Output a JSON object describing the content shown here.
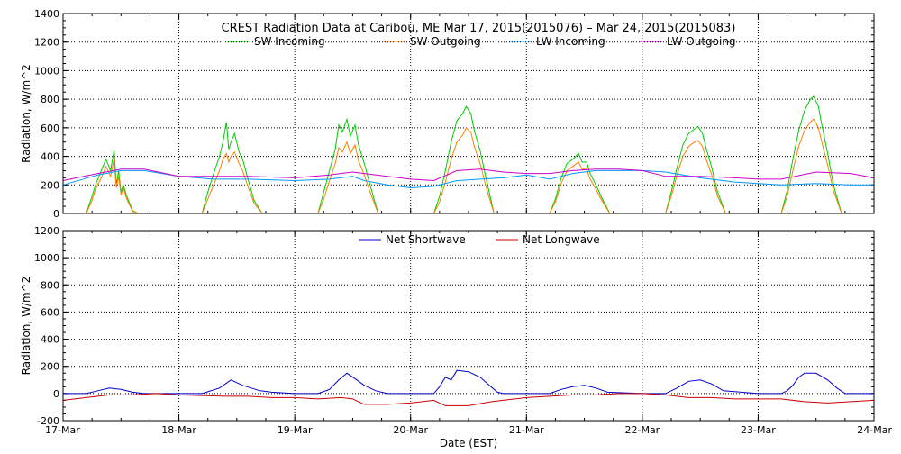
{
  "title": "CREST Radiation Data at Caribou, ME   Mar 17, 2015(2015076) – Mar 24, 2015(2015083)",
  "xlabel": "Date (EST)",
  "x_ticks": [
    "17-Mar",
    "18-Mar",
    "19-Mar",
    "20-Mar",
    "21-Mar",
    "22-Mar",
    "23-Mar",
    "24-Mar"
  ],
  "chart_data": [
    {
      "type": "line",
      "ylabel": "Radiation, W/m^2",
      "ylim": [
        0,
        1400
      ],
      "xlim": [
        0,
        7
      ],
      "yticks": [
        0,
        200,
        400,
        600,
        800,
        1000,
        1200,
        1400
      ],
      "grid": true,
      "legend": "top-center",
      "series": [
        {
          "name": "SW Incoming",
          "color": "#00cc00",
          "x": [
            0.2,
            0.25,
            0.28,
            0.33,
            0.37,
            0.41,
            0.44,
            0.46,
            0.48,
            0.5,
            0.52,
            0.55,
            0.6,
            0.65,
            1.2,
            1.25,
            1.3,
            1.35,
            1.38,
            1.41,
            1.43,
            1.45,
            1.48,
            1.52,
            1.55,
            1.6,
            1.65,
            1.72,
            2.2,
            2.25,
            2.3,
            2.35,
            2.38,
            2.41,
            2.45,
            2.48,
            2.52,
            2.55,
            2.6,
            2.65,
            2.72,
            3.2,
            3.25,
            3.3,
            3.35,
            3.4,
            3.45,
            3.48,
            3.52,
            3.55,
            3.6,
            3.65,
            3.72,
            4.2,
            4.25,
            4.3,
            4.35,
            4.4,
            4.45,
            4.48,
            4.52,
            4.55,
            4.6,
            4.65,
            4.72,
            5.2,
            5.25,
            5.3,
            5.35,
            5.4,
            5.45,
            5.48,
            5.52,
            5.55,
            5.6,
            5.65,
            5.72,
            6.2,
            6.25,
            6.3,
            6.35,
            6.4,
            6.45,
            6.48,
            6.52,
            6.55,
            6.6,
            6.65,
            6.72
          ],
          "y": [
            0,
            120,
            200,
            300,
            380,
            300,
            440,
            200,
            300,
            150,
            200,
            120,
            20,
            0,
            0,
            150,
            280,
            400,
            500,
            640,
            450,
            500,
            560,
            430,
            380,
            230,
            90,
            0,
            0,
            150,
            300,
            450,
            620,
            570,
            660,
            540,
            620,
            480,
            350,
            200,
            0,
            0,
            120,
            300,
            500,
            650,
            700,
            750,
            700,
            580,
            440,
            250,
            0,
            0,
            100,
            250,
            350,
            380,
            420,
            360,
            360,
            280,
            200,
            110,
            0,
            0,
            150,
            320,
            480,
            560,
            590,
            610,
            560,
            460,
            320,
            150,
            0,
            0,
            160,
            380,
            580,
            720,
            800,
            820,
            750,
            620,
            420,
            200,
            0
          ]
        },
        {
          "name": "SW Outgoing",
          "color": "#ff7f00",
          "x": [
            0.2,
            0.25,
            0.28,
            0.33,
            0.37,
            0.41,
            0.44,
            0.46,
            0.48,
            0.5,
            0.52,
            0.55,
            0.6,
            0.65,
            1.2,
            1.25,
            1.3,
            1.35,
            1.38,
            1.41,
            1.43,
            1.45,
            1.48,
            1.52,
            1.55,
            1.6,
            1.65,
            1.72,
            2.2,
            2.25,
            2.3,
            2.35,
            2.38,
            2.41,
            2.45,
            2.48,
            2.52,
            2.55,
            2.6,
            2.65,
            2.72,
            3.2,
            3.25,
            3.3,
            3.35,
            3.4,
            3.45,
            3.48,
            3.52,
            3.55,
            3.6,
            3.65,
            3.72,
            4.2,
            4.25,
            4.3,
            4.35,
            4.4,
            4.45,
            4.48,
            4.52,
            4.55,
            4.6,
            4.65,
            4.72,
            5.2,
            5.25,
            5.3,
            5.35,
            5.4,
            5.45,
            5.48,
            5.52,
            5.55,
            5.6,
            5.65,
            5.72,
            6.2,
            6.25,
            6.3,
            6.35,
            6.4,
            6.45,
            6.48,
            6.52,
            6.55,
            6.6,
            6.65,
            6.72
          ],
          "y": [
            0,
            90,
            170,
            250,
            330,
            260,
            380,
            180,
            260,
            130,
            180,
            100,
            15,
            0,
            0,
            100,
            200,
            300,
            380,
            420,
            360,
            400,
            430,
            350,
            300,
            180,
            70,
            0,
            0,
            100,
            230,
            350,
            460,
            430,
            500,
            420,
            480,
            370,
            270,
            150,
            0,
            0,
            80,
            220,
            380,
            500,
            550,
            600,
            570,
            470,
            350,
            190,
            0,
            0,
            80,
            210,
            300,
            330,
            360,
            310,
            310,
            240,
            170,
            90,
            0,
            0,
            120,
            270,
            400,
            470,
            500,
            510,
            470,
            380,
            270,
            120,
            0,
            0,
            120,
            300,
            470,
            580,
            640,
            660,
            600,
            500,
            340,
            160,
            0
          ]
        },
        {
          "name": "LW Incoming",
          "color": "#0099ff",
          "x": [
            0,
            0.3,
            0.5,
            0.7,
            1.0,
            1.3,
            1.6,
            2.0,
            2.3,
            2.5,
            2.6,
            2.8,
            3.0,
            3.2,
            3.4,
            3.6,
            3.8,
            4.0,
            4.2,
            4.4,
            4.6,
            4.8,
            5.0,
            5.2,
            5.5,
            5.8,
            6.0,
            6.2,
            6.5,
            6.8,
            7.0
          ],
          "y": [
            200,
            270,
            300,
            300,
            260,
            240,
            240,
            230,
            240,
            260,
            230,
            200,
            180,
            190,
            230,
            240,
            250,
            270,
            240,
            280,
            300,
            300,
            300,
            290,
            250,
            220,
            210,
            200,
            210,
            200,
            200
          ]
        },
        {
          "name": "LW Outgoing",
          "color": "#cc00cc",
          "x": [
            0,
            0.3,
            0.5,
            0.7,
            1.0,
            1.3,
            1.6,
            2.0,
            2.3,
            2.5,
            2.6,
            2.8,
            3.0,
            3.2,
            3.4,
            3.6,
            3.8,
            4.0,
            4.2,
            4.4,
            4.6,
            4.8,
            5.0,
            5.2,
            5.5,
            5.8,
            6.0,
            6.2,
            6.5,
            6.8,
            7.0
          ],
          "y": [
            230,
            280,
            310,
            310,
            260,
            260,
            260,
            250,
            270,
            290,
            280,
            260,
            240,
            230,
            300,
            310,
            290,
            280,
            280,
            300,
            310,
            310,
            300,
            260,
            260,
            250,
            240,
            240,
            290,
            280,
            250
          ]
        }
      ]
    },
    {
      "type": "line",
      "ylabel": "Radiation, W/m^2",
      "ylim": [
        -200,
        1200
      ],
      "xlim": [
        0,
        7
      ],
      "yticks": [
        -200,
        0,
        200,
        400,
        600,
        800,
        1000,
        1200
      ],
      "grid": true,
      "legend": "top-center",
      "series": [
        {
          "name": "Net Shortwave",
          "color": "#0000cc",
          "x": [
            0,
            0.2,
            0.3,
            0.4,
            0.5,
            0.6,
            0.7,
            1.0,
            1.2,
            1.35,
            1.45,
            1.55,
            1.7,
            1.8,
            2.0,
            2.2,
            2.3,
            2.38,
            2.45,
            2.52,
            2.6,
            2.7,
            2.8,
            3.0,
            3.2,
            3.25,
            3.3,
            3.35,
            3.4,
            3.5,
            3.6,
            3.68,
            3.75,
            3.8,
            4.0,
            4.2,
            4.3,
            4.4,
            4.5,
            4.6,
            4.7,
            5.0,
            5.2,
            5.3,
            5.4,
            5.5,
            5.6,
            5.7,
            6.0,
            6.2,
            6.25,
            6.3,
            6.35,
            6.4,
            6.5,
            6.6,
            6.68,
            6.75,
            7.0
          ],
          "y": [
            0,
            0,
            20,
            40,
            30,
            10,
            0,
            0,
            0,
            40,
            100,
            60,
            20,
            10,
            0,
            0,
            30,
            100,
            150,
            110,
            60,
            20,
            0,
            0,
            0,
            50,
            120,
            100,
            170,
            160,
            120,
            60,
            10,
            0,
            0,
            0,
            30,
            50,
            60,
            40,
            10,
            0,
            0,
            40,
            90,
            100,
            70,
            20,
            0,
            0,
            20,
            60,
            120,
            150,
            150,
            100,
            40,
            0,
            0
          ]
        },
        {
          "name": "Net Longwave",
          "color": "#cc0000",
          "x": [
            0,
            0.2,
            0.4,
            0.6,
            0.8,
            1.0,
            1.2,
            1.4,
            1.6,
            1.8,
            2.0,
            2.2,
            2.4,
            2.5,
            2.6,
            2.8,
            3.0,
            3.2,
            3.3,
            3.5,
            3.7,
            4.0,
            4.2,
            4.4,
            4.6,
            4.8,
            5.0,
            5.2,
            5.4,
            5.6,
            5.8,
            6.0,
            6.2,
            6.4,
            6.6,
            6.8,
            7.0
          ],
          "y": [
            -50,
            -30,
            -10,
            -10,
            0,
            -10,
            -15,
            -20,
            -20,
            -30,
            -30,
            -40,
            -30,
            -40,
            -80,
            -80,
            -70,
            -50,
            -90,
            -90,
            -60,
            -30,
            -20,
            -10,
            -10,
            0,
            0,
            -10,
            -30,
            -30,
            -40,
            -40,
            -40,
            -60,
            -70,
            -60,
            -50
          ]
        }
      ]
    }
  ]
}
